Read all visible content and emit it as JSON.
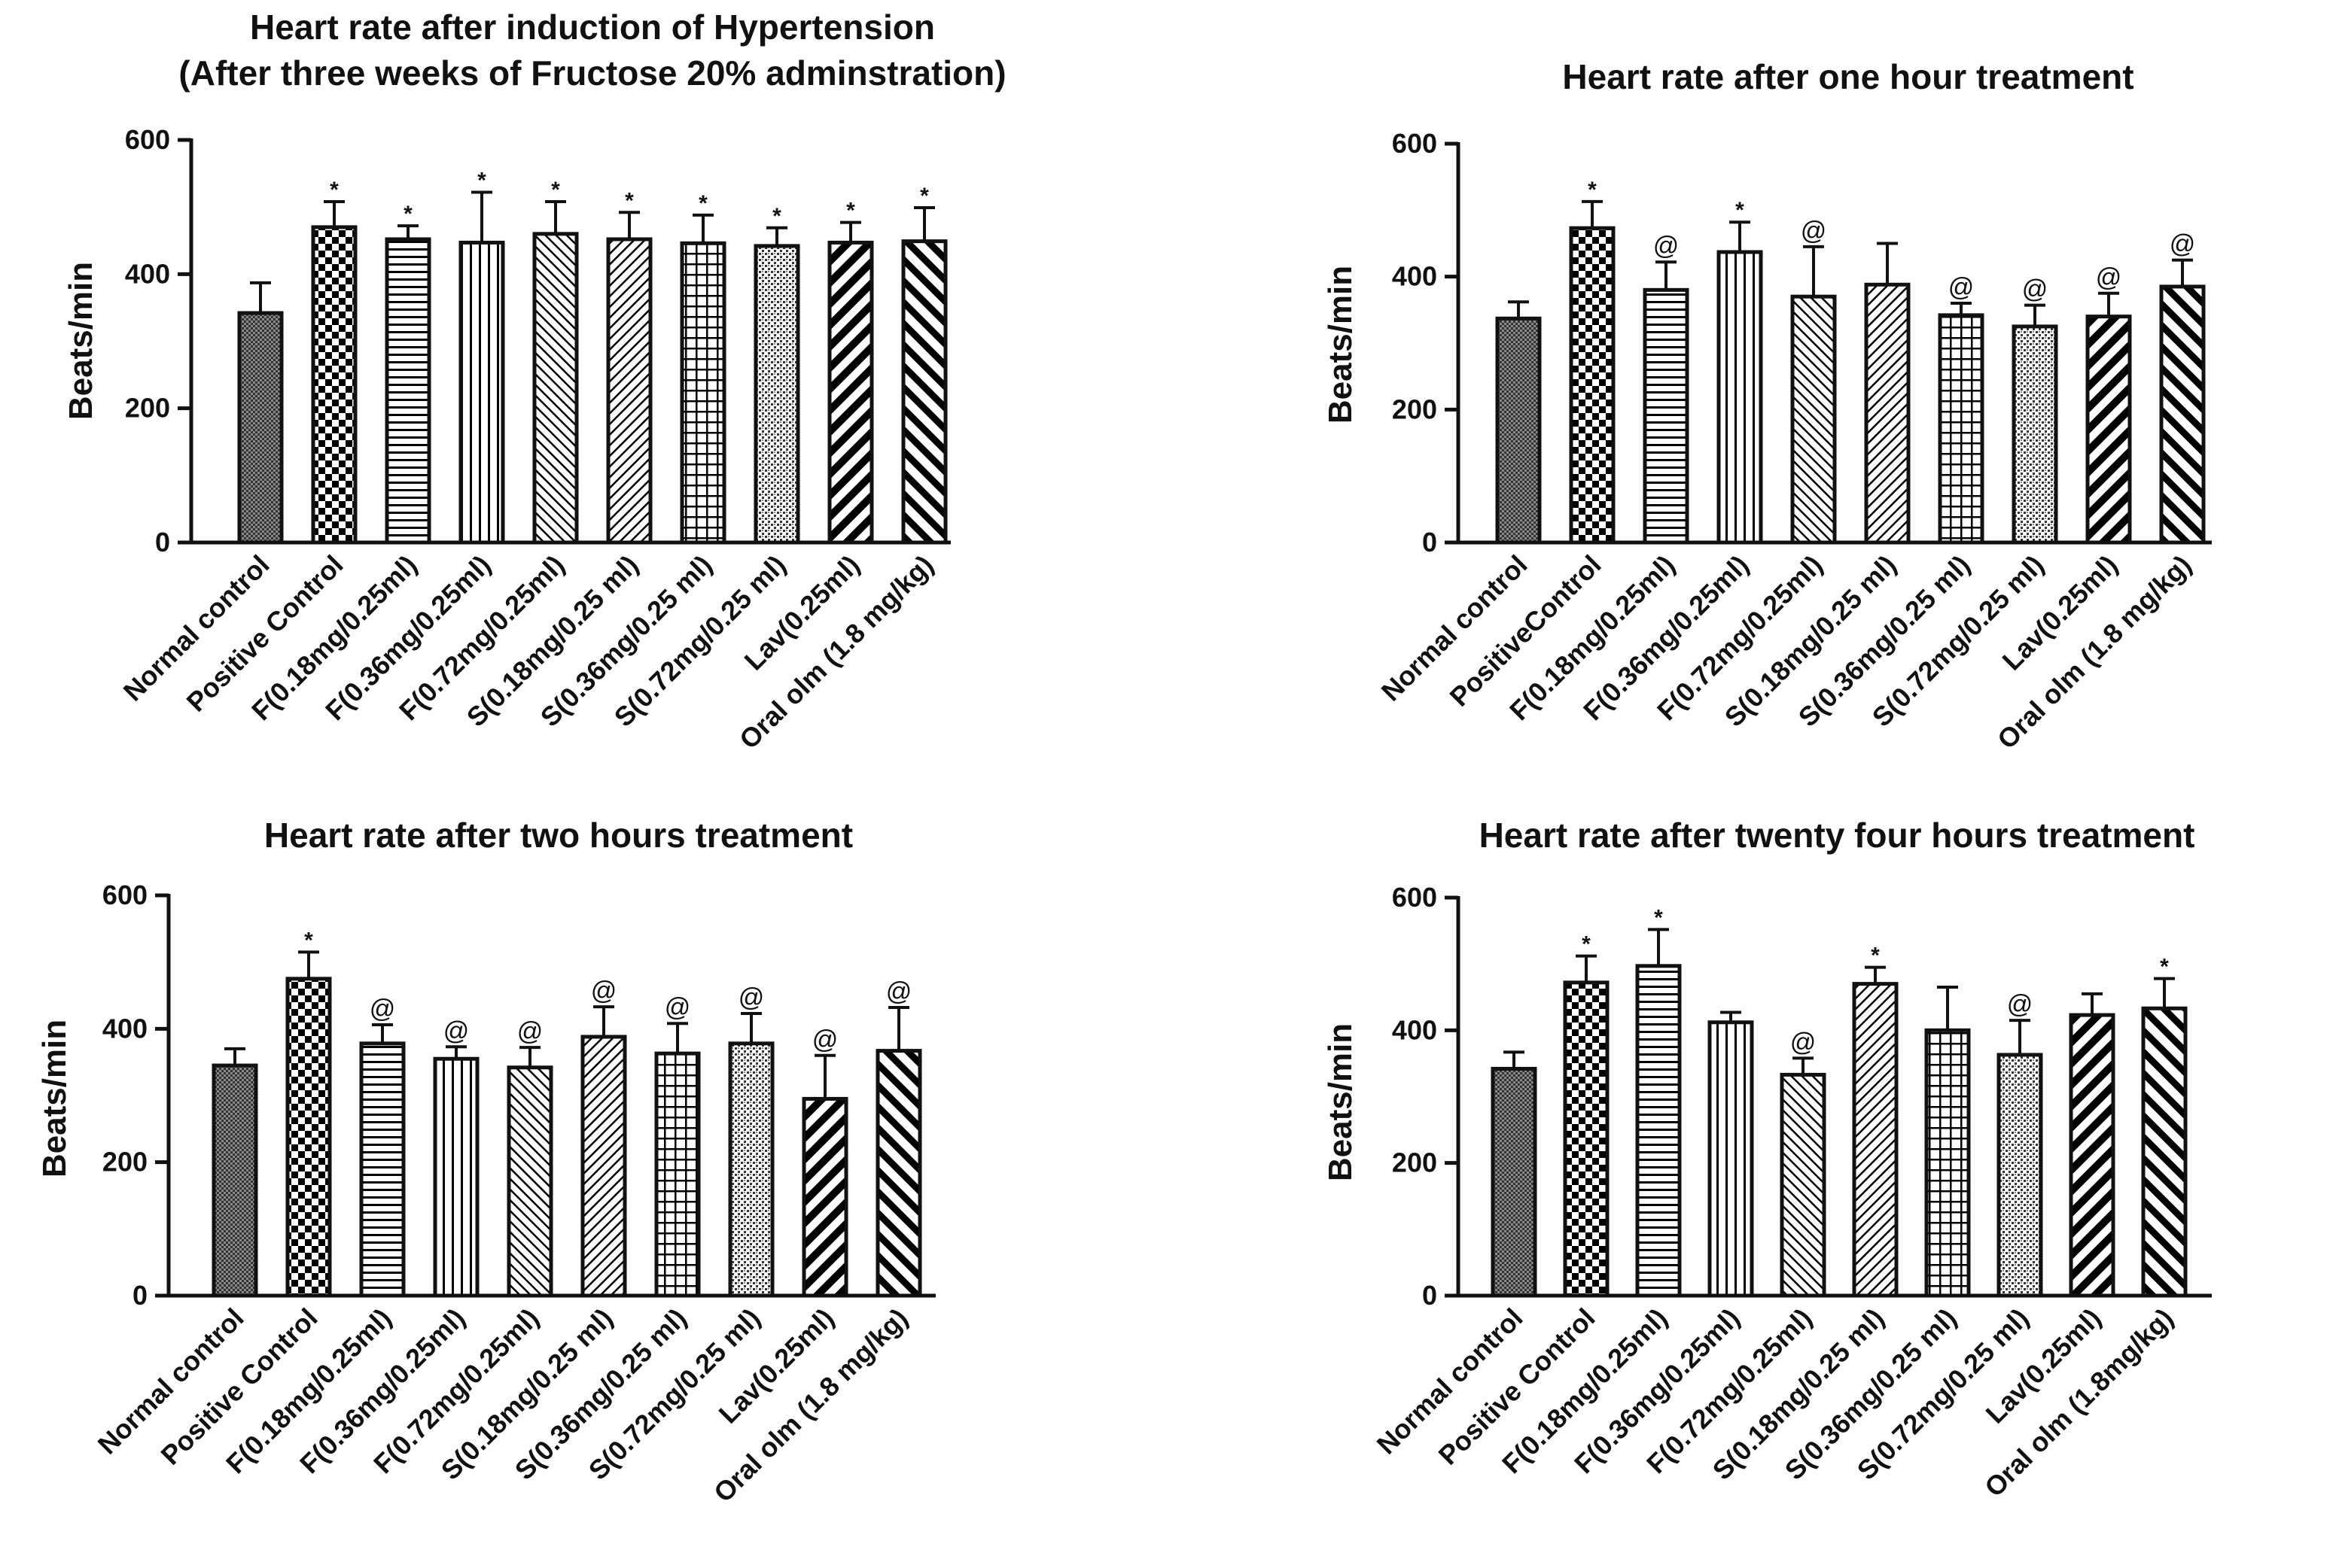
{
  "chart_data": [
    {
      "type": "bar",
      "title": [
        "Heart rate after induction of Hypertension",
        "(After three weeks of Fructose 20% adminstration)"
      ],
      "ylabel": "Beats/min",
      "ylim": [
        0,
        600
      ],
      "yticks": [
        "0",
        "200",
        "400",
        "600"
      ],
      "categories": [
        "Normal control",
        "Positive Control",
        "F(0.18mg/0.25ml)",
        "F(0.36mg/0.25ml)",
        "F(0.72mg/0.25ml)",
        "S(0.18mg/0.25 ml)",
        "S(0.36mg/0.25 ml)",
        "S(0.72mg/0.25 ml)",
        "Lav(0.25ml)",
        "Oral olm (1.8 mg/kg)"
      ],
      "values": [
        342,
        470,
        452,
        447,
        460,
        452,
        446,
        442,
        447,
        449
      ],
      "errors": [
        45,
        38,
        20,
        75,
        48,
        40,
        42,
        27,
        30,
        50
      ],
      "significance": [
        "",
        "*",
        "*",
        "*",
        "*",
        "*",
        "*",
        "*",
        "*",
        "*"
      ]
    },
    {
      "type": "bar",
      "title": [
        "Heart rate after one hour treatment"
      ],
      "ylabel": "Beats/min",
      "ylim": [
        0,
        600
      ],
      "yticks": [
        "0",
        "200",
        "400",
        "600"
      ],
      "categories": [
        "Normal control",
        "PositiveControl",
        "F(0.18mg/0.25ml)",
        "F(0.36mg/0.25ml)",
        "F(0.72mg/0.25ml)",
        "S(0.18mg/0.25 ml)",
        "S(0.36mg/0.25 ml)",
        "S(0.72mg/0.25 ml)",
        "Lav(0.25ml)",
        "Oral olm (1.8 mg/kg)"
      ],
      "values": [
        337,
        473,
        380,
        437,
        370,
        388,
        342,
        325,
        340,
        385
      ],
      "errors": [
        25,
        40,
        42,
        45,
        75,
        62,
        18,
        32,
        35,
        40
      ],
      "significance": [
        "",
        "*",
        "@",
        "*",
        "@",
        "",
        "@",
        "@",
        "@",
        "@"
      ]
    },
    {
      "type": "bar",
      "title": [
        "Heart rate after two hours treatment"
      ],
      "ylabel": "Beats/min",
      "ylim": [
        0,
        600
      ],
      "yticks": [
        "0",
        "200",
        "400",
        "600"
      ],
      "categories": [
        "Normal control",
        "Positive Control",
        "F(0.18mg/0.25ml)",
        "F(0.36mg/0.25ml)",
        "F(0.72mg/0.25ml)",
        "S(0.18mg/0.25 ml)",
        "S(0.36mg/0.25 ml)",
        "S(0.72mg/0.25 ml)",
        "Lav(0.25ml)",
        "Oral olm (1.8 mg/kg)"
      ],
      "values": [
        345,
        475,
        378,
        355,
        342,
        388,
        363,
        378,
        295,
        367
      ],
      "errors": [
        25,
        40,
        28,
        18,
        30,
        45,
        45,
        45,
        65,
        65
      ],
      "significance": [
        "",
        "*",
        "@",
        "@",
        "@",
        "@",
        "@",
        "@",
        "@",
        "@"
      ]
    },
    {
      "type": "bar",
      "title": [
        "Heart rate after twenty four hours treatment"
      ],
      "ylabel": "Beats/min",
      "ylim": [
        0,
        600
      ],
      "yticks": [
        "0",
        "200",
        "400",
        "600"
      ],
      "categories": [
        "Normal control",
        "Positive Control",
        "F(0.18mg/0.25ml)",
        "F(0.36mg/0.25ml)",
        "F(0.72mg/0.25ml)",
        "S(0.18mg/0.25 ml)",
        "S(0.36mg/0.25 ml)",
        "S(0.72mg/0.25 ml)",
        "Lav(0.25ml)",
        "Oral olm (1.8mg/kg)"
      ],
      "values": [
        342,
        472,
        497,
        412,
        333,
        470,
        400,
        363,
        423,
        433
      ],
      "errors": [
        25,
        40,
        55,
        15,
        25,
        25,
        65,
        52,
        32,
        45
      ],
      "significance": [
        "",
        "*",
        "*",
        "",
        "@",
        "*",
        "",
        "@",
        "",
        "*"
      ]
    }
  ]
}
